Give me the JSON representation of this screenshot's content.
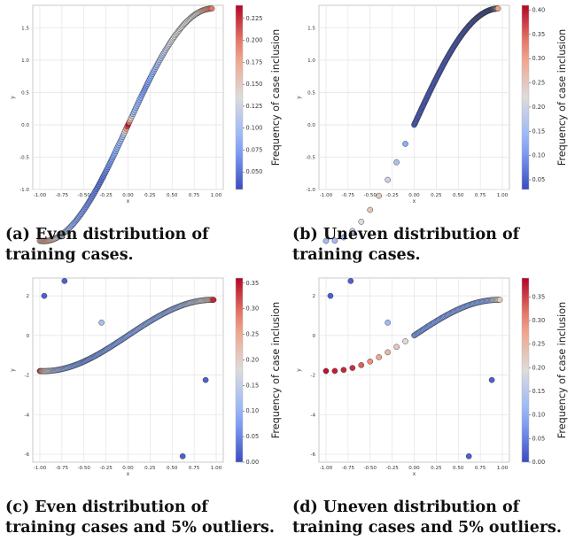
{
  "chart_data": [
    {
      "id": "a",
      "type": "scatter",
      "caption": "(a) Even distribution of\ntraining cases.",
      "xlabel": "x",
      "ylabel": "y",
      "colorbar_label": "Frequency of case inclusion",
      "xlim": [
        -1.08,
        1.08
      ],
      "ylim": [
        -1.0,
        1.85
      ],
      "xticks": [
        -1.0,
        -0.75,
        -0.5,
        -0.25,
        0.0,
        0.25,
        0.5,
        0.75,
        1.0
      ],
      "yticks": [
        -1.0,
        -0.5,
        0.0,
        0.5,
        1.0,
        1.5
      ],
      "colorbar_range": [
        0.03,
        0.24
      ],
      "colorbar_ticks": [
        0.05,
        0.075,
        0.1,
        0.125,
        0.15,
        0.175,
        0.2,
        0.225
      ],
      "colormap": "coolwarm",
      "grid": true,
      "distribution": "even",
      "curve": {
        "x_range": [
          -1.0,
          0.95
        ],
        "count": 180
      },
      "color_profile": [
        [
          -1.0,
          0.16
        ],
        [
          -0.9,
          0.17
        ],
        [
          -0.8,
          0.13
        ],
        [
          -0.6,
          0.08
        ],
        [
          -0.3,
          0.05
        ],
        [
          -0.05,
          0.1
        ],
        [
          0.0,
          0.24
        ],
        [
          0.05,
          0.1
        ],
        [
          0.2,
          0.07
        ],
        [
          0.5,
          0.13
        ],
        [
          0.8,
          0.14
        ],
        [
          0.95,
          0.2
        ]
      ],
      "outliers": []
    },
    {
      "id": "b",
      "type": "scatter",
      "caption": "(b) Uneven distribution of\ntraining cases.",
      "xlabel": "x",
      "ylabel": "y",
      "colorbar_label": "Frequency of case inclusion",
      "xlim": [
        -1.08,
        1.08
      ],
      "ylim": [
        -1.0,
        1.85
      ],
      "xticks": [
        -1.0,
        -0.75,
        -0.5,
        -0.25,
        0.0,
        0.25,
        0.5,
        0.75,
        1.0
      ],
      "yticks": [
        -1.0,
        -0.5,
        0.0,
        0.5,
        1.0,
        1.5
      ],
      "colorbar_range": [
        0.03,
        0.41
      ],
      "colorbar_ticks": [
        0.05,
        0.1,
        0.15,
        0.2,
        0.25,
        0.3,
        0.35,
        0.4
      ],
      "colormap": "coolwarm",
      "grid": true,
      "distribution": "uneven",
      "curve": {
        "sparse_x": [
          -1.0,
          -0.9,
          -0.8,
          -0.7,
          -0.6,
          -0.5,
          -0.4,
          -0.3,
          -0.2,
          -0.1
        ],
        "dense_x_range": [
          0.0,
          0.95
        ],
        "dense_count": 170
      },
      "color_profile": [
        [
          -1.0,
          0.15
        ],
        [
          -0.8,
          0.15
        ],
        [
          -0.6,
          0.22
        ],
        [
          -0.45,
          0.27
        ],
        [
          -0.3,
          0.2
        ],
        [
          -0.1,
          0.12
        ],
        [
          0.0,
          0.05
        ],
        [
          0.9,
          0.05
        ],
        [
          0.95,
          0.3
        ]
      ],
      "outliers": []
    },
    {
      "id": "c",
      "type": "scatter",
      "caption": "(c) Even distribution of\ntraining cases and 5% outliers.",
      "xlabel": "x",
      "ylabel": "y",
      "colorbar_label": "Frequency of case inclusion",
      "xlim": [
        -1.08,
        1.08
      ],
      "ylim": [
        -6.4,
        2.9
      ],
      "xticks": [
        -1.0,
        -0.75,
        -0.5,
        -0.25,
        0.0,
        0.25,
        0.5,
        0.75,
        1.0
      ],
      "yticks": [
        -6,
        -4,
        -2,
        0,
        2
      ],
      "colorbar_range": [
        0.0,
        0.36
      ],
      "colorbar_ticks": [
        0.0,
        0.05,
        0.1,
        0.15,
        0.2,
        0.25,
        0.3,
        0.35
      ],
      "colormap": "coolwarm",
      "grid": true,
      "distribution": "even",
      "curve": {
        "x_range": [
          -1.0,
          0.97
        ],
        "count": 180
      },
      "color_profile": [
        [
          -1.0,
          0.34
        ],
        [
          -0.95,
          0.2
        ],
        [
          -0.8,
          0.12
        ],
        [
          -0.5,
          0.07
        ],
        [
          0.0,
          0.09
        ],
        [
          0.5,
          0.1
        ],
        [
          0.8,
          0.16
        ],
        [
          0.93,
          0.2
        ],
        [
          0.97,
          0.34
        ]
      ],
      "outliers": [
        {
          "x": -0.95,
          "y": 2.0,
          "v": 0.02
        },
        {
          "x": -0.72,
          "y": 2.75,
          "v": 0.02
        },
        {
          "x": -0.3,
          "y": 0.65,
          "v": 0.12
        },
        {
          "x": 0.88,
          "y": -2.25,
          "v": 0.02
        },
        {
          "x": 0.62,
          "y": -6.1,
          "v": 0.02
        }
      ]
    },
    {
      "id": "d",
      "type": "scatter",
      "caption": "(d) Uneven distribution of\ntraining cases and 5% outliers.",
      "xlabel": "x",
      "ylabel": "y",
      "colorbar_label": "Frequency of case inclusion",
      "xlim": [
        -1.08,
        1.08
      ],
      "ylim": [
        -6.4,
        2.9
      ],
      "xticks": [
        -1.0,
        -0.75,
        -0.5,
        -0.25,
        0.0,
        0.25,
        0.5,
        0.75,
        1.0
      ],
      "yticks": [
        -6,
        -4,
        -2,
        0,
        2
      ],
      "colorbar_range": [
        0.0,
        0.39
      ],
      "colorbar_ticks": [
        0.0,
        0.05,
        0.1,
        0.15,
        0.2,
        0.25,
        0.3,
        0.35
      ],
      "colormap": "coolwarm",
      "grid": true,
      "distribution": "uneven",
      "curve": {
        "sparse_x": [
          -1.0,
          -0.9,
          -0.8,
          -0.7,
          -0.6,
          -0.5,
          -0.4,
          -0.3,
          -0.2,
          -0.1
        ],
        "dense_x_range": [
          0.0,
          0.97
        ],
        "dense_count": 80
      },
      "color_profile": [
        [
          -1.0,
          0.38
        ],
        [
          -0.7,
          0.36
        ],
        [
          -0.5,
          0.3
        ],
        [
          -0.3,
          0.25
        ],
        [
          -0.1,
          0.2
        ],
        [
          0.0,
          0.08
        ],
        [
          0.85,
          0.1
        ],
        [
          0.97,
          0.22
        ]
      ],
      "outliers": [
        {
          "x": -0.95,
          "y": 2.0,
          "v": 0.02
        },
        {
          "x": -0.72,
          "y": 2.75,
          "v": 0.02
        },
        {
          "x": -0.3,
          "y": 0.65,
          "v": 0.12
        },
        {
          "x": 0.88,
          "y": -2.25,
          "v": 0.02
        },
        {
          "x": 0.62,
          "y": -6.1,
          "v": 0.02
        }
      ]
    }
  ]
}
